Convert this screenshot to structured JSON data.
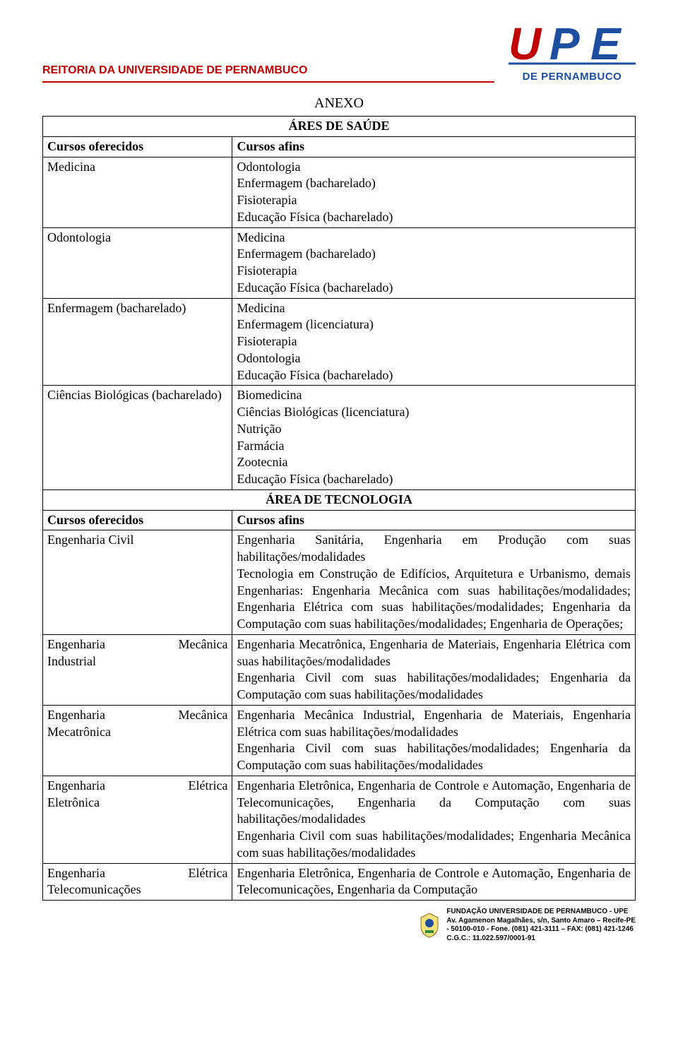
{
  "header": {
    "title": "REITORIA DA UNIVERSIDADE DE PERNAMBUCO",
    "title_color": "#c00000",
    "logo_caption": "DE PERNAMBUCO",
    "logo_colors": {
      "u": "#c00000",
      "p": "#1d4ea0",
      "e": "#1d4ea0"
    }
  },
  "anexo": "ANEXO",
  "section_saude": "ÁRES DE SAÚDE",
  "section_tecnologia": "ÁREA DE TECNOLOGIA",
  "col_header_left": "Cursos oferecidos",
  "col_header_right": "Cursos afins",
  "saude_rows": [
    {
      "offered": "Medicina",
      "afins": "Odontologia\nEnfermagem (bacharelado)\nFisioterapia\nEducação Física (bacharelado)"
    },
    {
      "offered": "Odontologia",
      "afins": "Medicina\nEnfermagem (bacharelado)\nFisioterapia\nEducação Física (bacharelado)"
    },
    {
      "offered": "Enfermagem (bacharelado)",
      "afins": "Medicina\nEnfermagem (licenciatura)\nFisioterapia\nOdontologia\nEducação Física (bacharelado)"
    },
    {
      "offered": "Ciências Biológicas (bacharelado)",
      "afins": "Biomedicina\nCiências Biológicas (licenciatura)\nNutrição\nFarmácia\nZootecnia\nEducação Física (bacharelado)"
    }
  ],
  "tec_rows": [
    {
      "offered": "Engenharia Civil",
      "afins": "Engenharia Sanitária, Engenharia em Produção com suas habilitações/modalidades\nTecnologia em Construção de Edifícios, Arquitetura e Urbanismo, demais Engenharias: Engenharia Mecânica com suas habilitações/modalidades; Engenharia Elétrica com suas habilitações/modalidades; Engenharia da Computação com suas habilitações/modalidades; Engenharia de Operações;"
    },
    {
      "offered_line1": "Engenharia",
      "offered_line1b": "Mecânica",
      "offered_line2": "Industrial",
      "afins": "Engenharia Mecatrônica, Engenharia de Materiais, Engenharia Elétrica com suas habilitações/modalidades\nEngenharia Civil com suas habilitações/modalidades; Engenharia da Computação com suas habilitações/modalidades"
    },
    {
      "offered_line1": "Engenharia",
      "offered_line1b": "Mecânica",
      "offered_line2": "Mecatrônica",
      "afins": "Engenharia Mecânica Industrial, Engenharia de Materiais, Engenharia Elétrica com suas habilitações/modalidades\nEngenharia Civil com suas habilitações/modalidades; Engenharia da Computação com suas habilitações/modalidades"
    },
    {
      "offered_line1": "Engenharia",
      "offered_line1b": "Elétrica",
      "offered_line2": "Eletrônica",
      "afins": "Engenharia Eletrônica, Engenharia de Controle e Automação, Engenharia de Telecomunicações, Engenharia da Computação com suas habilitações/modalidades\nEngenharia Civil com suas habilitações/modalidades; Engenharia Mecânica com suas habilitações/modalidades"
    },
    {
      "offered_line1": "Engenharia",
      "offered_line1b": "Elétrica",
      "offered_line2": "Telecomunicações",
      "afins": "Engenharia Eletrônica, Engenharia de Controle e Automação, Engenharia de Telecomunicações, Engenharia da Computação"
    }
  ],
  "footer": {
    "line1": "FUNDAÇÃO UNIVERSIDADE DE PERNAMBUCO - UPE",
    "line2": "Av. Agamenon Magalhães, s/n, Santo Amaro – Recife-PE",
    "line3": "- 50100-010 - Fone. (081) 421-3111 – FAX: (081) 421-1246",
    "line4": "C.G.C.: 11.022.597/0001-91"
  }
}
